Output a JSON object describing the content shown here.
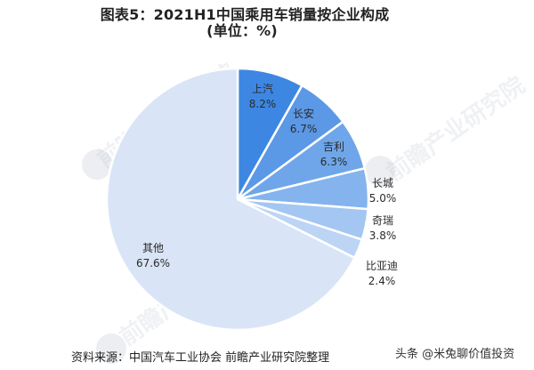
{
  "header": {
    "title": "图表5：2021H1中国乘用车销量按企业构成",
    "unit": "(单位：%)"
  },
  "chart_data": {
    "type": "pie",
    "title": "图表5：2021H1中国乘用车销量按企业构成",
    "subtitle": "(单位：%)",
    "start_angle_deg": 0,
    "direction": "clockwise",
    "categories": [
      "上汽",
      "长安",
      "吉利",
      "长城",
      "奇瑞",
      "比亚迪",
      "其他"
    ],
    "values": [
      8.2,
      6.7,
      6.3,
      5.0,
      3.8,
      2.4,
      67.6
    ],
    "labels": [
      "8.2%",
      "6.7%",
      "6.3%",
      "5.0%",
      "3.8%",
      "2.4%",
      "67.6%"
    ],
    "colors": [
      "#3d87e3",
      "#5b98e6",
      "#6fa6ea",
      "#84b3ee",
      "#a4c6f2",
      "#bcd5f5",
      "#d9e5f6"
    ],
    "legend": "none (labels on/next to slices)"
  },
  "labels": {
    "s0": {
      "name": "上汽",
      "pct": "8.2%"
    },
    "s1": {
      "name": "长安",
      "pct": "6.7%"
    },
    "s2": {
      "name": "吉利",
      "pct": "6.3%"
    },
    "s3": {
      "name": "长城",
      "pct": "5.0%"
    },
    "s4": {
      "name": "奇瑞",
      "pct": "3.8%"
    },
    "s5": {
      "name": "比亚迪",
      "pct": "2.4%"
    },
    "s6": {
      "name": "其他",
      "pct": "67.6%"
    }
  },
  "footer": {
    "source": "资料来源：中国汽车工业协会 前瞻产业研究院整理",
    "credit": "头条 @米兔聊价值投资"
  },
  "watermark": {
    "text": "前瞻产业研究院"
  }
}
